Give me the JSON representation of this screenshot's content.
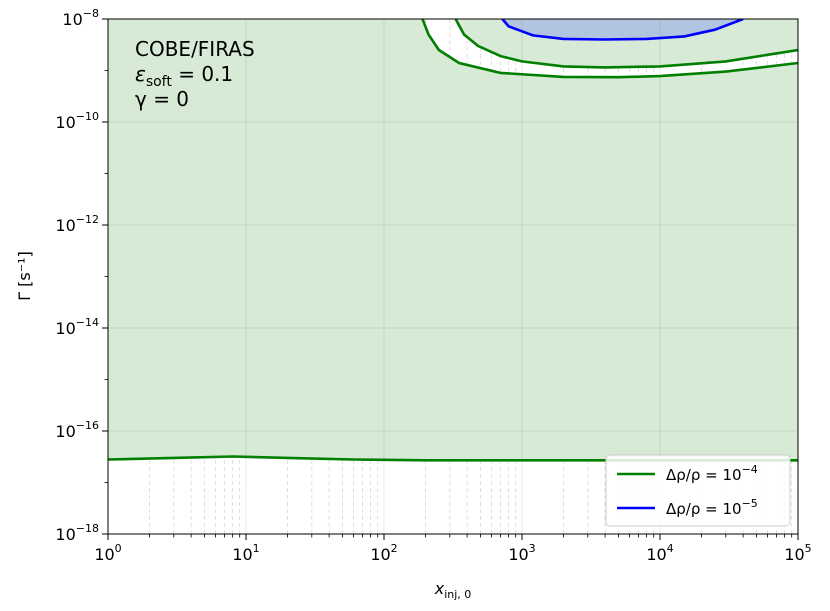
{
  "chart_data": {
    "type": "contour",
    "xlabel": "x_inj,0",
    "ylabel": "Γ [s⁻¹]",
    "x_scale": "log",
    "y_scale": "log",
    "xlim": [
      1,
      100000
    ],
    "ylim": [
      1e-18,
      1e-08
    ],
    "grid": true,
    "x_ticks": [
      {
        "value": 1,
        "base": "10",
        "exp": "0"
      },
      {
        "value": 10,
        "base": "10",
        "exp": "1"
      },
      {
        "value": 100,
        "base": "10",
        "exp": "2"
      },
      {
        "value": 1000,
        "base": "10",
        "exp": "3"
      },
      {
        "value": 10000,
        "base": "10",
        "exp": "4"
      },
      {
        "value": 100000,
        "base": "10",
        "exp": "5"
      }
    ],
    "y_ticks": [
      {
        "value": 1e-18,
        "base": "10",
        "exp": "−18"
      },
      {
        "value": 1e-16,
        "base": "10",
        "exp": "−16"
      },
      {
        "value": 1e-14,
        "base": "10",
        "exp": "−14"
      },
      {
        "value": 1e-12,
        "base": "10",
        "exp": "−12"
      },
      {
        "value": 1e-10,
        "base": "10",
        "exp": "−10"
      },
      {
        "value": 1e-08,
        "base": "10",
        "exp": "−8"
      }
    ],
    "annotation": {
      "line1": "COBE/FIRAS",
      "line2_symbol": "ε",
      "line2_sub": "soft",
      "line2_value": " = 0.1",
      "line3": "γ = 0"
    },
    "legend_position": "lower right",
    "colors": {
      "green_line": "#007f00",
      "green_fill": "#d7ead5",
      "blue_line": "#0000ff",
      "blue_fill": "#b2c5e0"
    },
    "series": [
      {
        "name": "Δρ/ρ = 10⁻⁴",
        "legend_prefix": "Δρ/ρ = 10",
        "legend_exp": "−4",
        "color": "#007f00",
        "lower_boundary": {
          "x": [
            1,
            3,
            8,
            20,
            60,
            200,
            1000,
            10000,
            100000
          ],
          "y": [
            2.8e-17,
            3e-17,
            3.2e-17,
            3e-17,
            2.8e-17,
            2.7e-17,
            2.7e-17,
            2.7e-17,
            2.7e-17
          ]
        },
        "upper_inner_boundary": {
          "x": [
            330,
            380,
            480,
            700,
            1000,
            2000,
            4000,
            10000,
            30000,
            100000
          ],
          "y": [
            1e-08,
            5e-09,
            3e-09,
            1.9e-09,
            1.5e-09,
            1.2e-09,
            1.15e-09,
            1.2e-09,
            1.5e-09,
            2.5e-09
          ]
        },
        "upper_outer_boundary": {
          "x": [
            190,
            210,
            250,
            350,
            700,
            2000,
            5000,
            10000,
            30000,
            100000
          ],
          "y": [
            1e-08,
            5e-09,
            2.5e-09,
            1.4e-09,
            9e-10,
            7.5e-10,
            7.4e-10,
            7.8e-10,
            9.5e-10,
            1.4e-09
          ]
        }
      },
      {
        "name": "Δρ/ρ = 10⁻⁵",
        "legend_prefix": "Δρ/ρ = 10",
        "legend_exp": "−5",
        "color": "#0000ff",
        "boundary": {
          "x": [
            720,
            800,
            1200,
            2000,
            4000,
            8000,
            15000,
            25000,
            40000
          ],
          "y": [
            1e-08,
            7.2e-09,
            4.8e-09,
            4.1e-09,
            4e-09,
            4.1e-09,
            4.6e-09,
            6.2e-09,
            1e-08
          ]
        }
      }
    ]
  }
}
